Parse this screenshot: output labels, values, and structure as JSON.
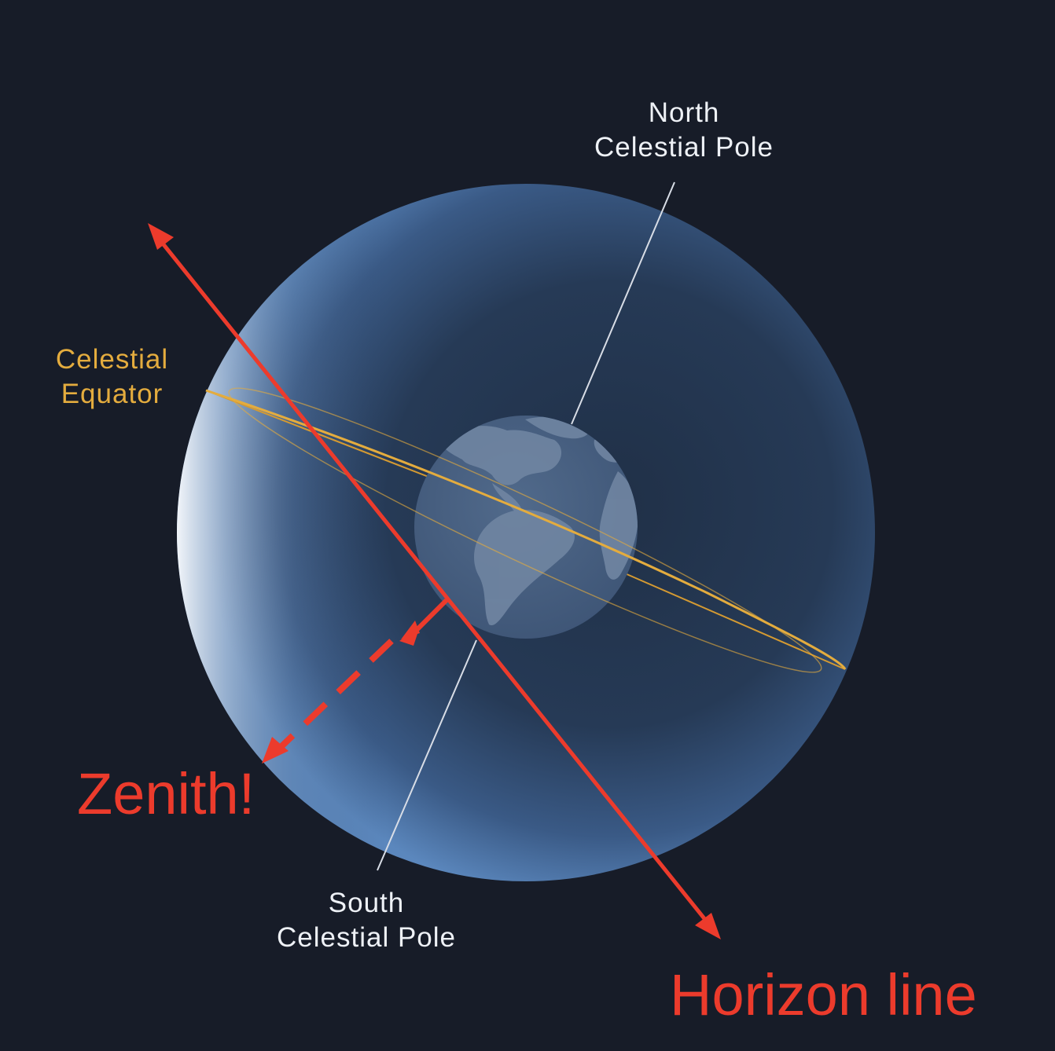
{
  "labels": {
    "north_pole_line1": "North",
    "north_pole_line2": "Celestial Pole",
    "south_pole_line1": "South",
    "south_pole_line2": "Celestial Pole",
    "equator_line1": "Celestial",
    "equator_line2": "Equator",
    "zenith": "Zenith!",
    "horizon": "Horizon line"
  },
  "colors": {
    "background": "#171c28",
    "sphere": "#2b3f5c",
    "earth": "#49607f",
    "land": "#7388a4",
    "equator": "#e4ac3e",
    "annotation": "#ec3b2c",
    "axis": "#d8dde6"
  }
}
